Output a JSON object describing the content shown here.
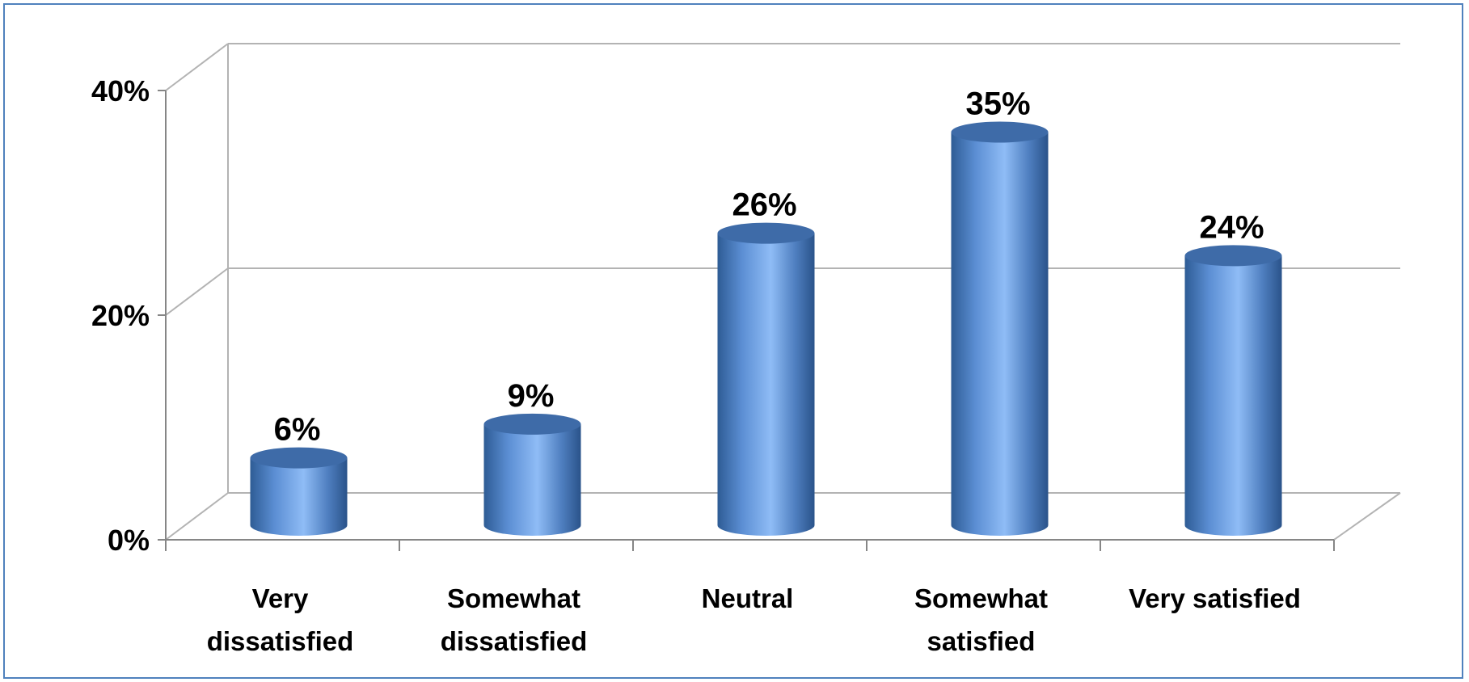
{
  "chart_data": {
    "type": "bar",
    "style": "3d-cylinder",
    "categories": [
      [
        "Very",
        "dissatisfied"
      ],
      [
        "Somewhat",
        "dissatisfied"
      ],
      [
        "Neutral"
      ],
      [
        "Somewhat",
        "satisfied"
      ],
      [
        "Very satisfied"
      ]
    ],
    "values": [
      6,
      9,
      26,
      35,
      24
    ],
    "data_labels": [
      "6%",
      "9%",
      "26%",
      "35%",
      "24%"
    ],
    "y_ticks": [
      {
        "value": 0,
        "label": "0%"
      },
      {
        "value": 20,
        "label": "20%"
      },
      {
        "value": 40,
        "label": "40%"
      }
    ],
    "ylim": [
      0,
      40
    ],
    "grid": true,
    "colors": {
      "bar_dark": "#2e5c95",
      "bar_light": "#8fbcf6",
      "bar_top": "#3e6ba8",
      "gridline": "#b3b3b3",
      "border": "#4f81bd"
    }
  }
}
